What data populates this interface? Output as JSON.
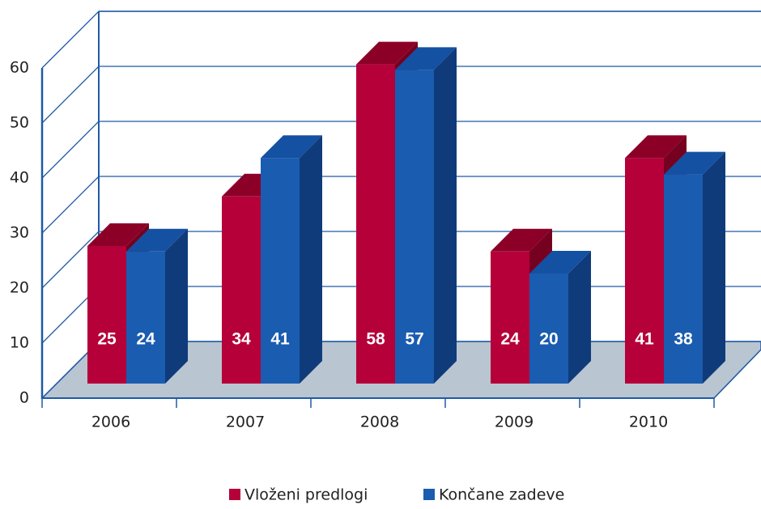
{
  "chart_data": {
    "type": "bar",
    "categories": [
      "2006",
      "2007",
      "2008",
      "2009",
      "2010"
    ],
    "series": [
      {
        "name": "Vloženi predlogi",
        "color": "#b5003a",
        "values": [
          25,
          34,
          58,
          24,
          41
        ]
      },
      {
        "name": "Končane zadeve",
        "color": "#1a5cb0",
        "values": [
          24,
          41,
          57,
          20,
          38
        ]
      }
    ],
    "ylim": [
      0,
      60
    ],
    "yticks": [
      0,
      10,
      20,
      30,
      40,
      50,
      60
    ],
    "grid": true,
    "legend": "bottom"
  }
}
